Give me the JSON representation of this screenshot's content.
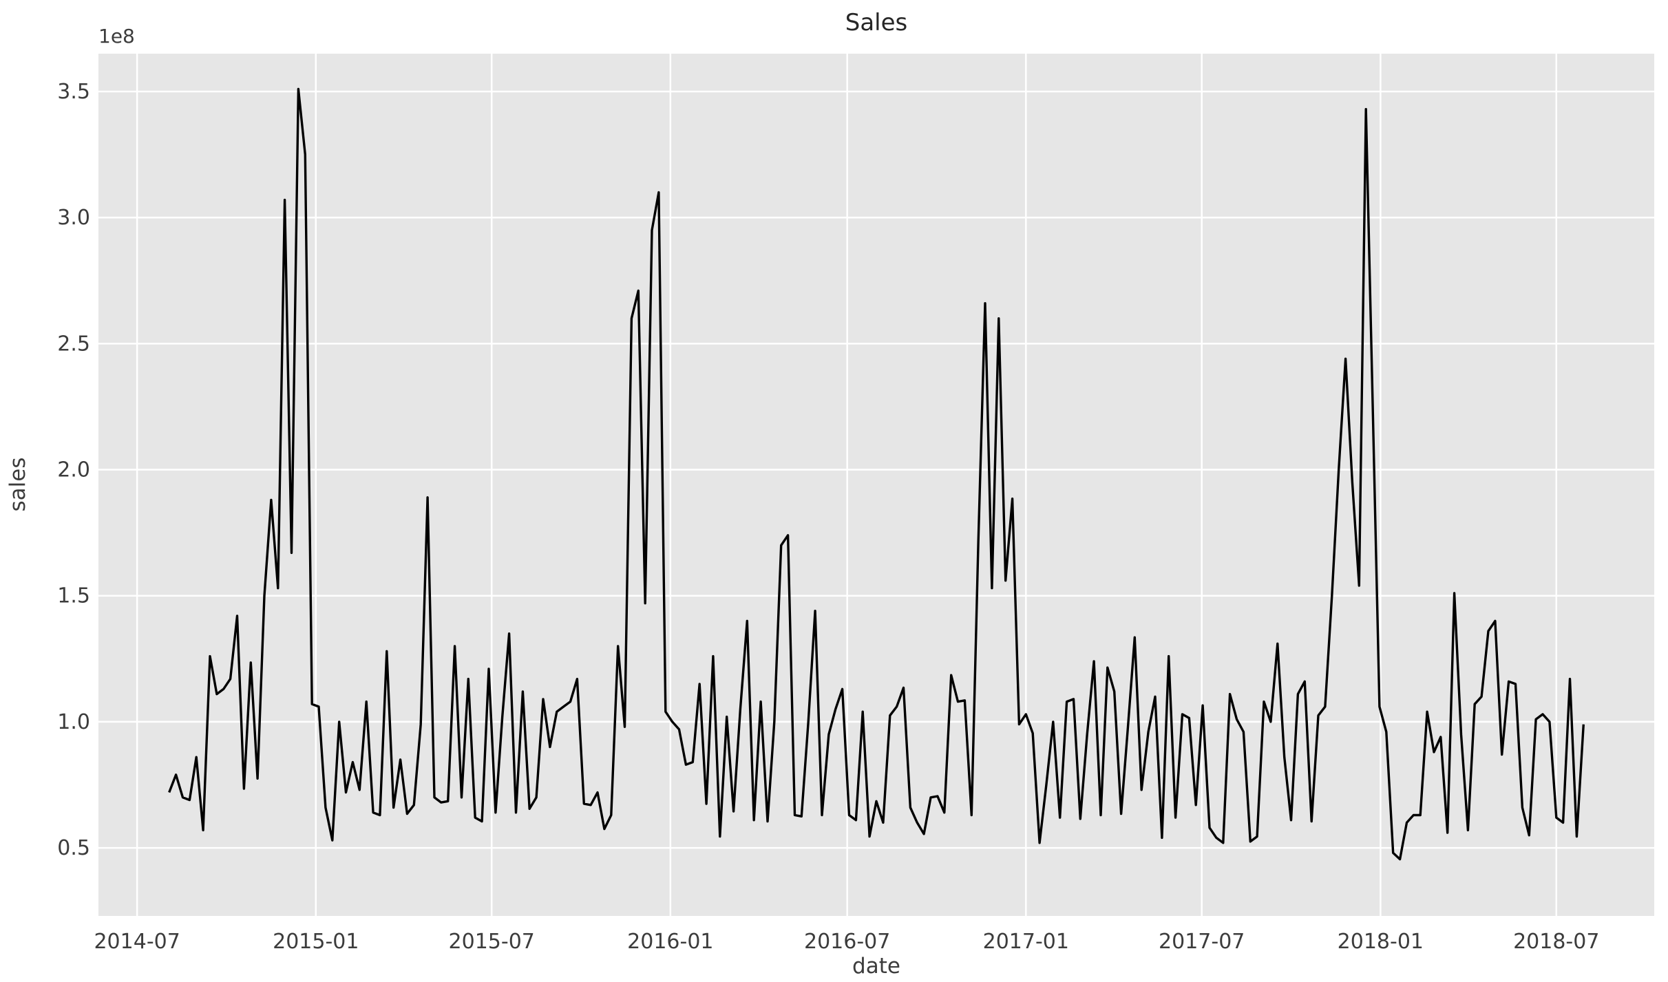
{
  "chart_data": {
    "type": "line",
    "title": "Sales",
    "xlabel": "date",
    "ylabel": "sales",
    "y_offset_label": "1e8",
    "values_unit": "1e8",
    "grid": true,
    "legend": "none",
    "colors": {
      "line": "#000000",
      "axes_background": "#E6E6E6",
      "gridline": "#FFFFFF",
      "tick_text": "#3c3c3c",
      "figure_background": "#FFFFFF"
    },
    "ylim": [
      0.23,
      3.65
    ],
    "x_margin_frac": 0.05,
    "y_ticks": [
      {
        "label": "0.5",
        "value": 0.5
      },
      {
        "label": "1.0",
        "value": 1.0
      },
      {
        "label": "1.5",
        "value": 1.5
      },
      {
        "label": "2.0",
        "value": 2.0
      },
      {
        "label": "2.5",
        "value": 2.5
      },
      {
        "label": "3.0",
        "value": 3.0
      },
      {
        "label": "3.5",
        "value": 3.5
      }
    ],
    "x_ticks": [
      {
        "label": "2014-07",
        "date": "2014-07-01"
      },
      {
        "label": "2015-01",
        "date": "2015-01-01"
      },
      {
        "label": "2015-07",
        "date": "2015-07-01"
      },
      {
        "label": "2016-01",
        "date": "2016-01-01"
      },
      {
        "label": "2016-07",
        "date": "2016-07-01"
      },
      {
        "label": "2017-01",
        "date": "2017-01-01"
      },
      {
        "label": "2017-07",
        "date": "2017-07-01"
      },
      {
        "label": "2018-01",
        "date": "2018-01-01"
      },
      {
        "label": "2018-07",
        "date": "2018-07-01"
      }
    ],
    "series": [
      {
        "name": "sales",
        "start_date": "2014-08-03",
        "frequency": "weekly",
        "values": [
          0.72,
          0.79,
          0.7,
          0.69,
          0.86,
          0.57,
          1.26,
          1.11,
          1.13,
          1.17,
          1.42,
          0.735,
          1.235,
          0.775,
          1.5,
          1.88,
          1.53,
          3.07,
          1.67,
          3.51,
          3.25,
          1.07,
          1.06,
          0.66,
          0.53,
          1.0,
          0.72,
          0.84,
          0.73,
          1.08,
          0.64,
          0.63,
          1.28,
          0.66,
          0.85,
          0.635,
          0.67,
          0.99,
          1.89,
          0.7,
          0.68,
          0.685,
          1.3,
          0.7,
          1.17,
          0.62,
          0.605,
          1.21,
          0.64,
          1.02,
          1.35,
          0.64,
          1.12,
          0.655,
          0.7,
          1.09,
          0.9,
          1.04,
          1.06,
          1.08,
          1.17,
          0.675,
          0.67,
          0.72,
          0.575,
          0.63,
          1.3,
          0.98,
          2.6,
          2.71,
          1.47,
          2.95,
          3.1,
          1.04,
          1.0,
          0.97,
          0.83,
          0.84,
          1.15,
          0.675,
          1.26,
          0.545,
          1.02,
          0.645,
          1.05,
          1.4,
          0.61,
          1.08,
          0.605,
          1.0,
          1.7,
          1.74,
          0.63,
          0.625,
          1.0,
          1.44,
          0.63,
          0.95,
          1.05,
          1.13,
          0.63,
          0.61,
          1.04,
          0.545,
          0.685,
          0.6,
          1.025,
          1.06,
          1.135,
          0.66,
          0.6,
          0.555,
          0.7,
          0.705,
          0.64,
          1.185,
          1.08,
          1.085,
          0.63,
          1.72,
          2.66,
          1.53,
          2.6,
          1.56,
          1.885,
          0.99,
          1.03,
          0.955,
          0.52,
          0.75,
          1.0,
          0.62,
          1.08,
          1.09,
          0.615,
          0.95,
          1.24,
          0.63,
          1.215,
          1.12,
          0.635,
          0.98,
          1.335,
          0.73,
          0.96,
          1.1,
          0.54,
          1.26,
          0.62,
          1.03,
          1.015,
          0.67,
          1.065,
          0.58,
          0.54,
          0.52,
          1.11,
          1.01,
          0.96,
          0.525,
          0.545,
          1.08,
          1.0,
          1.31,
          0.86,
          0.61,
          1.11,
          1.16,
          0.605,
          1.025,
          1.06,
          1.5,
          2.0,
          2.44,
          1.95,
          1.54,
          3.43,
          2.25,
          1.06,
          0.96,
          0.48,
          0.455,
          0.6,
          0.63,
          0.63,
          1.04,
          0.88,
          0.94,
          0.56,
          1.51,
          0.95,
          0.57,
          1.07,
          1.1,
          1.36,
          1.4,
          0.87,
          1.16,
          1.15,
          0.66,
          0.55,
          1.01,
          1.03,
          1.0,
          0.62,
          0.6,
          1.17,
          0.545,
          0.99
        ]
      }
    ]
  }
}
